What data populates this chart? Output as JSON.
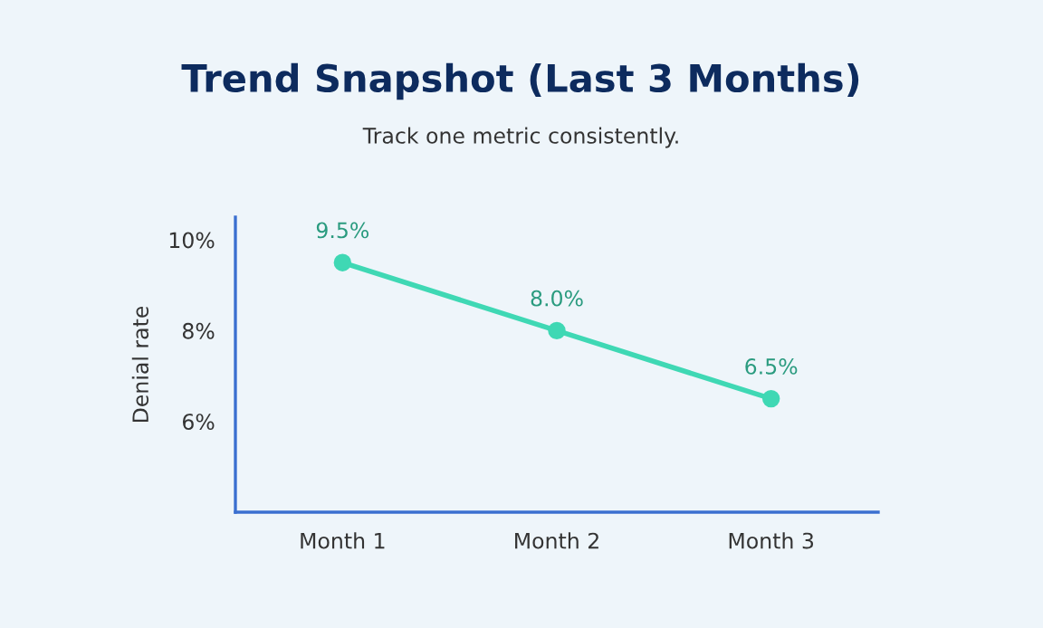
{
  "chart_data": {
    "type": "line",
    "title": "Trend Snapshot (Last 3 Months)",
    "subtitle": "Track one metric consistently.",
    "ylabel": "Denial rate",
    "categories": [
      "Month 1",
      "Month 2",
      "Month 3"
    ],
    "series": [
      {
        "color": "#3fd8b4",
        "values": [
          9.5,
          8.0,
          6.5
        ],
        "value_labels": [
          "9.5%",
          "8.0%",
          "6.5%"
        ]
      }
    ],
    "ylim": [
      4,
      10.5
    ],
    "yticks": [
      {
        "value": 6,
        "label": "6%"
      },
      {
        "value": 8,
        "label": "8%"
      },
      {
        "value": 10,
        "label": "10%"
      }
    ],
    "grid": false,
    "legend": false,
    "marker": "circle",
    "line_style": "solid"
  }
}
